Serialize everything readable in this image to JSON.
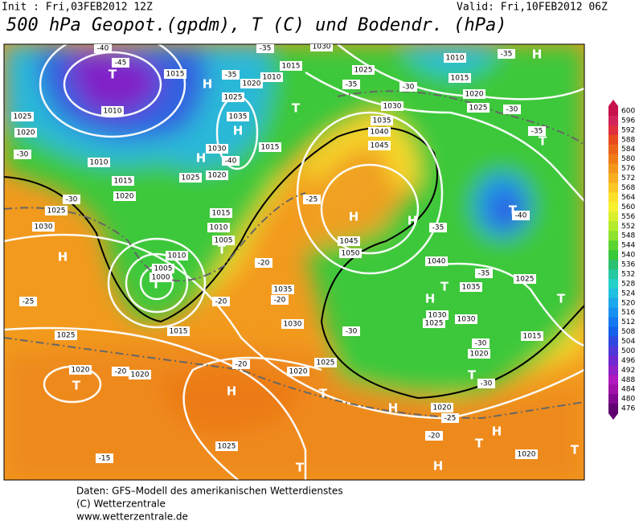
{
  "header": {
    "init": "Init : Fri,03FEB2012 12Z",
    "valid": "Valid: Fri,10FEB2012 06Z",
    "title": "500 hPa Geopot.(gpdm), T (C) und Bodendr. (hPa)"
  },
  "legend": {
    "levels": [
      "600",
      "596",
      "592",
      "588",
      "584",
      "580",
      "576",
      "572",
      "568",
      "564",
      "560",
      "556",
      "552",
      "548",
      "544",
      "540",
      "536",
      "532",
      "528",
      "524",
      "520",
      "516",
      "512",
      "508",
      "504",
      "500",
      "496",
      "492",
      "488",
      "484",
      "480",
      "476"
    ],
    "colors": [
      "#c8104a",
      "#d0245a",
      "#e03040",
      "#e84a1e",
      "#ec6418",
      "#f07c18",
      "#f4961c",
      "#f8ae20",
      "#fcc826",
      "#fce02a",
      "#f8f02c",
      "#d8f02c",
      "#b4ec2c",
      "#8ee22e",
      "#5cd432",
      "#38c838",
      "#2cc070",
      "#28c8a0",
      "#24d0c8",
      "#20c0e0",
      "#1ca8ec",
      "#1890f0",
      "#1478f0",
      "#1460e8",
      "#3048e0",
      "#5038d8",
      "#7028d0",
      "#9020c8",
      "#b018c0",
      "#a010a8",
      "#800890",
      "#600070"
    ]
  },
  "map_labels": [
    "T",
    "-45",
    "-40",
    "1015",
    "H",
    "-35",
    "1010",
    "1015",
    "1020",
    "1025",
    "T",
    "1035",
    "H",
    "H",
    "1030",
    "1015",
    "-40",
    "1025",
    "1020",
    "1010",
    "1025",
    "1020",
    "-30",
    "1010",
    "1015",
    "1020",
    "1025",
    "1030",
    "H",
    "-30",
    "-25",
    "1025",
    "1005",
    "1000",
    "T",
    "1010",
    "1015",
    "1010",
    "1005",
    "T",
    "-20",
    "-20",
    "-20",
    "1035",
    "1030",
    "1015",
    "1020",
    "T",
    "-20",
    "1020",
    "-20",
    "H",
    "1025",
    "-15",
    "1020",
    "T",
    "1025",
    "-30",
    "1030",
    "1035",
    "1040",
    "1045",
    "H",
    "1050",
    "1045",
    "-25",
    "-35",
    "H",
    "1040",
    "-35",
    "1035",
    "T",
    "H",
    "1030",
    "1025",
    "1030",
    "-30",
    "1020",
    "T",
    "1015",
    "1025",
    "T",
    "-30",
    "H",
    "1020",
    "-25",
    "-20",
    "T",
    "H",
    "H",
    "T",
    "1020",
    "T",
    "T",
    "-40",
    "H",
    "-35",
    "1010",
    "1015",
    "1020",
    "1025",
    "-30",
    "-35",
    "T",
    "1025",
    "-35",
    "-30",
    "1030",
    "-35"
  ],
  "footer": [
    "Daten: GFS–Modell des amerikanischen Wetterdienstes",
    "(C) Wetterzentrale",
    "www.wetterzentrale.de"
  ]
}
